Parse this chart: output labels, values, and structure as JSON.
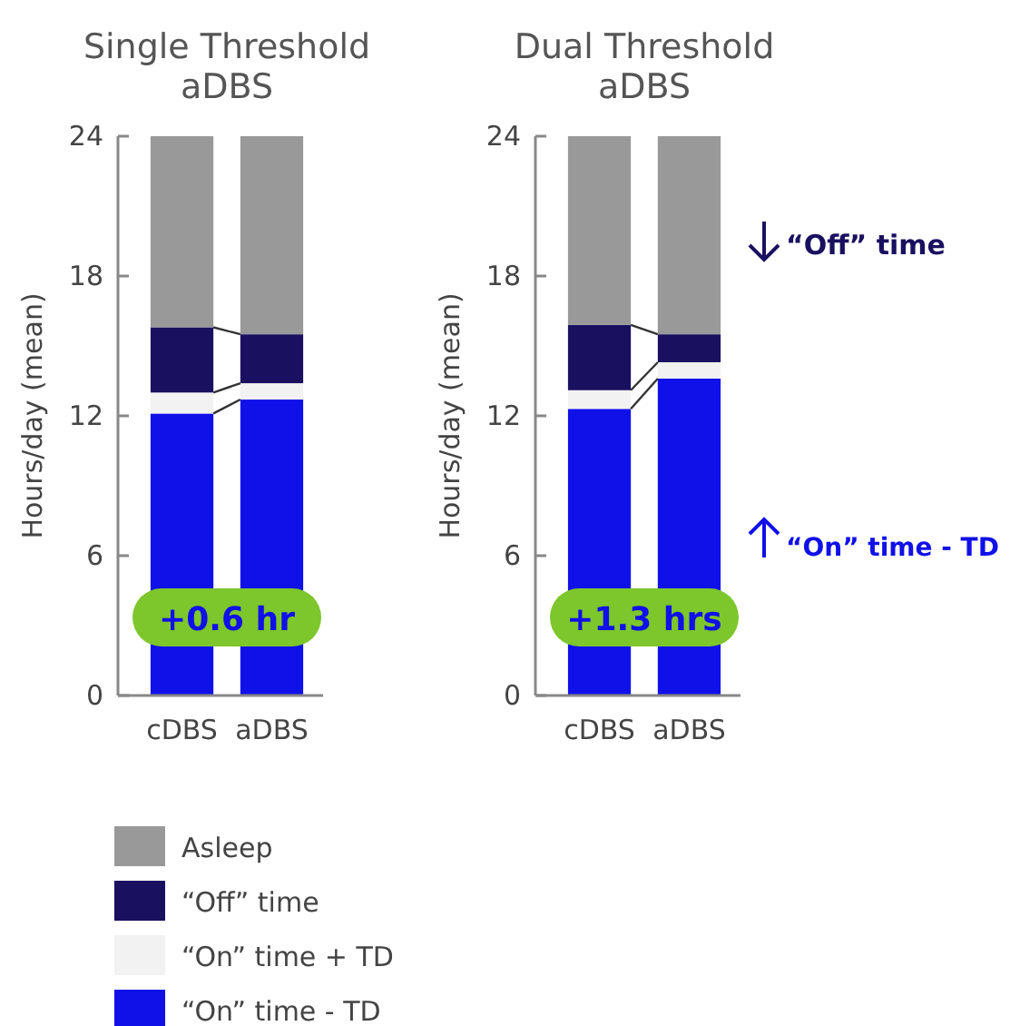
{
  "chart_data": [
    {
      "type": "bar",
      "stacked": true,
      "title": "Single Threshold aDBS",
      "ylabel": "Hours/day (mean)",
      "categories": [
        "cDBS",
        "aDBS"
      ],
      "ylim": [
        0,
        24
      ],
      "yticks": [
        0,
        6,
        12,
        18,
        24
      ],
      "legend": "bottom",
      "annotations": [
        "+0.6 hr"
      ],
      "series": [
        {
          "name": "“On” time - TD",
          "color": "#1010e8",
          "values": [
            12.1,
            12.7
          ]
        },
        {
          "name": "“On” time + TD",
          "color": "#f2f2f2",
          "values": [
            0.9,
            0.7
          ]
        },
        {
          "name": "“Off” time",
          "color": "#1a1060",
          "values": [
            2.8,
            2.1
          ]
        },
        {
          "name": "Asleep",
          "color": "#999999",
          "values": [
            8.2,
            8.5
          ]
        }
      ]
    },
    {
      "type": "bar",
      "stacked": true,
      "title": "Dual Threshold aDBS",
      "ylabel": "Hours/day (mean)",
      "categories": [
        "cDBS",
        "aDBS"
      ],
      "ylim": [
        0,
        24
      ],
      "yticks": [
        0,
        6,
        12,
        18,
        24
      ],
      "annotations": [
        "+1.3 hrs",
        "“Off” time",
        "“On” time - TD"
      ],
      "series": [
        {
          "color": "#1010e8",
          "values": [
            12.3,
            13.6
          ]
        },
        {
          "color": "#f2f2f2",
          "values": [
            0.8,
            0.7
          ]
        },
        {
          "color": "#1a1060",
          "values": [
            2.8,
            1.2
          ]
        },
        {
          "color": "#999999",
          "values": [
            8.1,
            8.5
          ]
        }
      ]
    }
  ]
}
